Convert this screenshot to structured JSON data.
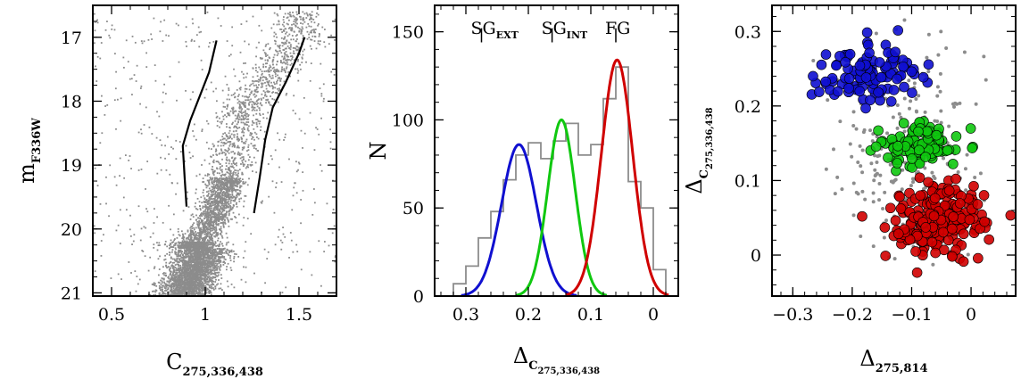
{
  "colors": {
    "grey_points": "#8c8c8c",
    "blue": "#1010d0",
    "green": "#10c810",
    "red": "#d00000",
    "histogram": "#8c8c8c",
    "fiducial": "#000000"
  },
  "chart_data": [
    {
      "type": "scatter",
      "xlabel": {
        "main": "C",
        "sub": "275,336,438"
      },
      "ylabel": {
        "main": "m",
        "sub": "F336W"
      },
      "xlim": [
        0.4,
        1.7
      ],
      "ylim": [
        21.05,
        16.5
      ],
      "y_inverted": true,
      "xticks": [
        0.5,
        1,
        1.5
      ],
      "yticks": [
        17,
        18,
        19,
        20,
        21
      ],
      "xtick_labels": [
        "0.5",
        "1",
        "1.5"
      ],
      "ytick_labels": [
        "17",
        "18",
        "19",
        "20",
        "21"
      ],
      "series": [
        {
          "kind": "points",
          "description_density": "dense cloud of grey stars; turnoff near C=0.9-1.0 at m=20.5-21",
          "sample_ridge": {
            "x": [
              0.88,
              0.9,
              0.92,
              0.95,
              1.0,
              1.05,
              1.1,
              1.15,
              1.2,
              1.3,
              1.4,
              1.5
            ],
            "y": [
              21.0,
              20.7,
              20.4,
              20.2,
              20.0,
              19.8,
              19.4,
              18.8,
              18.2,
              17.8,
              17.4,
              17.0
            ]
          }
        },
        {
          "kind": "line",
          "x": [
            0.9,
            0.89,
            0.88,
            0.92,
            0.96,
            1.02,
            1.06
          ],
          "y": [
            19.65,
            19.2,
            18.7,
            18.3,
            18.0,
            17.55,
            17.05
          ]
        },
        {
          "kind": "line",
          "x": [
            1.26,
            1.29,
            1.32,
            1.36,
            1.43,
            1.5,
            1.53
          ],
          "y": [
            19.75,
            19.2,
            18.6,
            18.1,
            17.7,
            17.25,
            17.0
          ]
        }
      ]
    },
    {
      "type": "bar",
      "xlabel": {
        "main": "Δ",
        "sub": "C",
        "subsub": "275,336,438"
      },
      "ylabel": {
        "main": "N"
      },
      "xlim": [
        0.35,
        -0.04
      ],
      "ylim": [
        0,
        165
      ],
      "x_inverted": true,
      "xticks": [
        0.3,
        0.2,
        0.1,
        0
      ],
      "yticks": [
        0,
        50,
        100,
        150
      ],
      "xtick_labels": [
        "0.3",
        "0.2",
        "0.1",
        "0"
      ],
      "ytick_labels": [
        "0",
        "50",
        "100",
        "150"
      ],
      "histogram": {
        "bin_edges": [
          0.32,
          0.3,
          0.28,
          0.26,
          0.24,
          0.22,
          0.2,
          0.18,
          0.16,
          0.14,
          0.12,
          0.1,
          0.08,
          0.06,
          0.04,
          0.02,
          0.0,
          -0.02
        ],
        "counts": [
          7,
          17,
          33,
          48,
          66,
          80,
          87,
          78,
          88,
          98,
          80,
          86,
          112,
          130,
          65,
          50,
          15,
          0
        ]
      },
      "gaussians": [
        {
          "color_key": "blue",
          "mu": 0.215,
          "sigma": 0.028,
          "amp": 86
        },
        {
          "color_key": "green",
          "mu": 0.147,
          "sigma": 0.022,
          "amp": 100
        },
        {
          "color_key": "red",
          "mu": 0.058,
          "sigma": 0.025,
          "amp": 134
        }
      ],
      "annotations": [
        {
          "main": "SG",
          "sub": "EXT",
          "x": 0.275,
          "marker_y": [
            144,
            152
          ]
        },
        {
          "main": "SG",
          "sub": "INT",
          "x": 0.162,
          "marker_y": [
            144,
            152
          ]
        },
        {
          "main": "FG",
          "sub": "",
          "x": 0.06,
          "marker_y": [
            144,
            152
          ]
        }
      ]
    },
    {
      "type": "scatter",
      "xlabel": {
        "main": "Δ",
        "sub": "275,814"
      },
      "ylabel": {
        "main": "Δ",
        "sub": "C",
        "subsub": "275,336,438"
      },
      "xlim": [
        -0.335,
        0.075
      ],
      "ylim": [
        -0.055,
        0.335
      ],
      "xticks": [
        -0.3,
        -0.2,
        -0.1,
        0
      ],
      "yticks": [
        0,
        0.1,
        0.2,
        0.3
      ],
      "xtick_labels": [
        "−0.3",
        "−0.2",
        "−0.1",
        "0"
      ],
      "ytick_labels": [
        "0",
        "0.1",
        "0.2",
        "0.3"
      ],
      "groups": [
        {
          "name": "SGEXT",
          "color_key": "blue",
          "cx": -0.17,
          "cy": 0.245,
          "sx": 0.045,
          "sy": 0.022,
          "n": 110
        },
        {
          "name": "SGINT",
          "color_key": "green",
          "cx": -0.085,
          "cy": 0.148,
          "sx": 0.035,
          "sy": 0.016,
          "n": 100
        },
        {
          "name": "FG",
          "color_key": "red",
          "cx": -0.055,
          "cy": 0.045,
          "sx": 0.04,
          "sy": 0.025,
          "n": 210
        },
        {
          "name": "other",
          "color_key": "grey_points",
          "cx": -0.1,
          "cy": 0.14,
          "sx": 0.06,
          "sy": 0.07,
          "n": 260
        }
      ]
    }
  ]
}
